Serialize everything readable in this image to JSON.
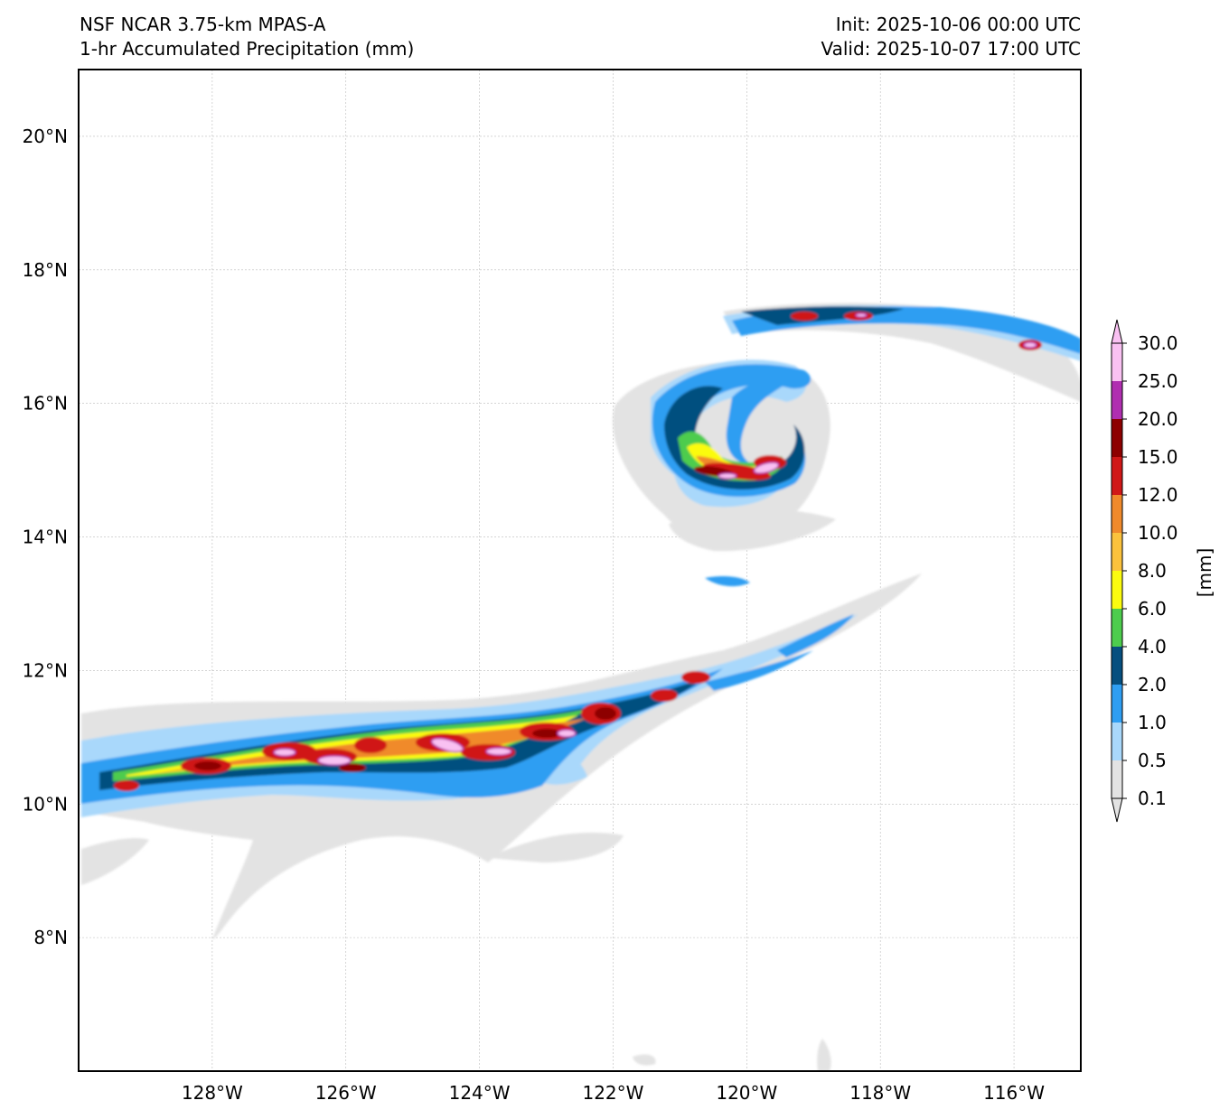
{
  "header": {
    "model_name": "NSF NCAR 3.75-km MPAS-A",
    "field_name": "1-hr Accumulated Precipitation (mm)",
    "init_time": "Init: 2025-10-06 00:00 UTC",
    "valid_time": "Valid: 2025-10-07 17:00 UTC"
  },
  "map": {
    "lon_range": [
      -130.0,
      -115.0
    ],
    "lat_range": [
      6.0,
      21.0
    ],
    "lon_ticks": [
      {
        "value": -128,
        "label": "128°W"
      },
      {
        "value": -126,
        "label": "126°W"
      },
      {
        "value": -124,
        "label": "124°W"
      },
      {
        "value": -122,
        "label": "122°W"
      },
      {
        "value": -120,
        "label": "120°W"
      },
      {
        "value": -118,
        "label": "118°W"
      },
      {
        "value": -116,
        "label": "116°W"
      }
    ],
    "lat_ticks": [
      {
        "value": 20,
        "label": "20°N"
      },
      {
        "value": 18,
        "label": "18°N"
      },
      {
        "value": 16,
        "label": "16°N"
      },
      {
        "value": 14,
        "label": "14°N"
      },
      {
        "value": 12,
        "label": "12°N"
      },
      {
        "value": 10,
        "label": "10°N"
      },
      {
        "value": 8,
        "label": "8°N"
      }
    ]
  },
  "colorbar": {
    "unit_label": "[mm]",
    "levels": [
      "0.1",
      "0.5",
      "1.0",
      "2.0",
      "4.0",
      "6.0",
      "8.0",
      "10.0",
      "12.0",
      "15.0",
      "20.0",
      "25.0",
      "30.0"
    ],
    "colors": [
      "#e3e3e3",
      "#a9d8fb",
      "#2f9ef2",
      "#064f7f",
      "#4dcc4d",
      "#fbfb0f",
      "#fbc23d",
      "#f08a2c",
      "#d01818",
      "#8d0000",
      "#b02eb0",
      "#f9c1f2"
    ]
  },
  "features": {
    "cyclone_center": {
      "lon": -119.9,
      "lat": 15.6
    },
    "itcz_axis_lat_at_west": 10.4,
    "itcz_axis_lat_at_east": 12.6
  }
}
